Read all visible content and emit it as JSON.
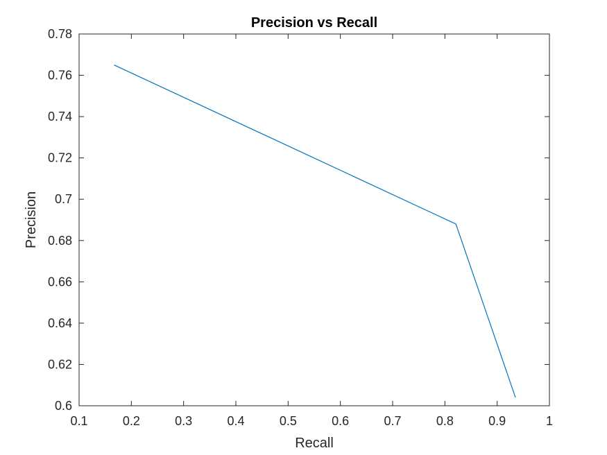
{
  "chart_data": {
    "type": "line",
    "title": "Precision vs Recall",
    "xlabel": "Recall",
    "ylabel": "Precision",
    "xlim": [
      0.1,
      1
    ],
    "ylim": [
      0.6,
      0.78
    ],
    "xticks": [
      "0.1",
      "0.2",
      "0.3",
      "0.4",
      "0.5",
      "0.6",
      "0.7",
      "0.8",
      "0.9",
      "1"
    ],
    "yticks": [
      "0.6",
      "0.62",
      "0.64",
      "0.66",
      "0.68",
      "0.7",
      "0.72",
      "0.74",
      "0.76",
      "0.78"
    ],
    "grid": false,
    "legend": false,
    "line_color": "#0072BD",
    "axis_color": "#262626",
    "series": [
      {
        "x": [
          0.167,
          0.821,
          0.935
        ],
        "y": [
          0.765,
          0.688,
          0.604
        ]
      }
    ]
  }
}
